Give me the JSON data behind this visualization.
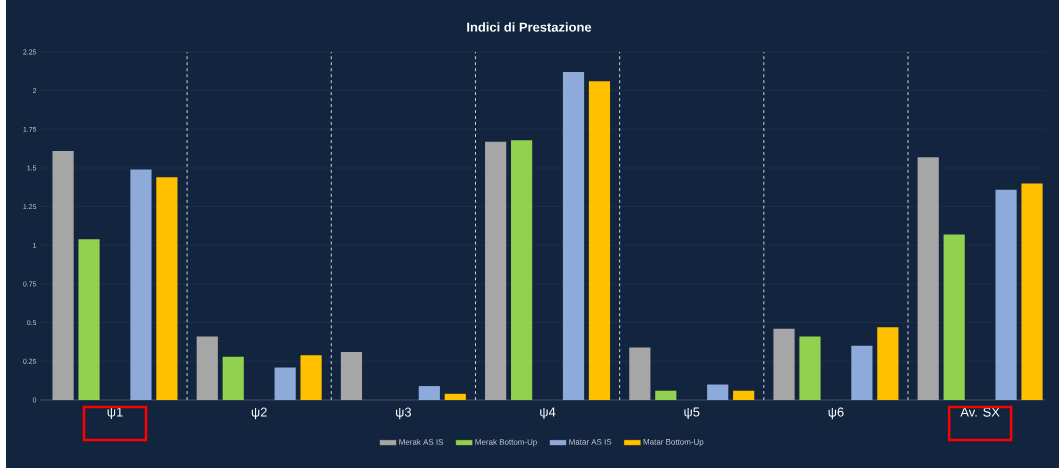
{
  "chart_data": {
    "type": "bar",
    "title": "Indici di Prestazione",
    "categories": [
      "ψ1",
      "ψ2",
      "ψ3",
      "ψ4",
      "ψ5",
      "ψ6",
      "Av. SX"
    ],
    "series": [
      {
        "name": "Merak AS IS",
        "color": "#a6a6a6",
        "values": [
          1.61,
          0.41,
          0.31,
          1.67,
          0.34,
          0.46,
          1.57
        ]
      },
      {
        "name": "Merak Bottom-Up",
        "color": "#92d050",
        "values": [
          1.04,
          0.28,
          0,
          1.68,
          0.06,
          0.41,
          1.07
        ]
      },
      {
        "name": "Matar AS IS",
        "color": "#8eaadb",
        "values": [
          1.49,
          0.21,
          0.09,
          2.12,
          0.1,
          0.35,
          1.36
        ]
      },
      {
        "name": "Matar Bottom-Up",
        "color": "#ffc000",
        "values": [
          1.44,
          0.29,
          0.04,
          2.06,
          0.06,
          0.47,
          1.4
        ]
      }
    ],
    "ylim": [
      0,
      2.25
    ],
    "yticks": [
      0,
      0.25,
      0.5,
      0.75,
      1,
      1.25,
      1.5,
      1.75,
      2,
      2.25
    ],
    "grid": "y",
    "legend": "bottom"
  }
}
